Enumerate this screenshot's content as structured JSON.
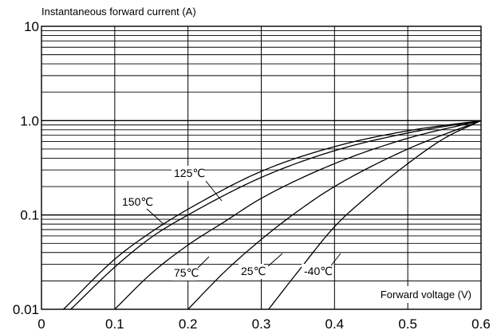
{
  "chart_data": {
    "type": "line",
    "title": "",
    "ylabel": "Instantaneous forward current (A)",
    "xlabel": "Forward voltage (V)",
    "x_scale": "linear",
    "y_scale": "log",
    "xlim": [
      0,
      0.6
    ],
    "ylim": [
      0.01,
      10
    ],
    "grid": true,
    "x_ticks": [
      "0",
      "0.1",
      "0.2",
      "0.3",
      "0.4",
      "0.5",
      "0.6"
    ],
    "y_ticks": [
      "0.01",
      "0.1",
      "1.0",
      "10"
    ],
    "series": [
      {
        "name": "150℃",
        "x": [
          0.03,
          0.1,
          0.15,
          0.2,
          0.3,
          0.4,
          0.5,
          0.6
        ],
        "y": [
          0.01,
          0.034,
          0.066,
          0.115,
          0.29,
          0.53,
          0.78,
          1.0
        ]
      },
      {
        "name": "125℃",
        "x": [
          0.04,
          0.1,
          0.15,
          0.2,
          0.3,
          0.4,
          0.5,
          0.6
        ],
        "y": [
          0.01,
          0.028,
          0.058,
          0.1,
          0.25,
          0.48,
          0.74,
          1.0
        ]
      },
      {
        "name": "75℃",
        "x": [
          0.1,
          0.15,
          0.2,
          0.25,
          0.3,
          0.4,
          0.5,
          0.6
        ],
        "y": [
          0.01,
          0.024,
          0.048,
          0.085,
          0.15,
          0.35,
          0.65,
          1.0
        ]
      },
      {
        "name": "25℃",
        "x": [
          0.2,
          0.25,
          0.3,
          0.35,
          0.4,
          0.5,
          0.6
        ],
        "y": [
          0.01,
          0.025,
          0.055,
          0.11,
          0.2,
          0.5,
          1.0
        ]
      },
      {
        "name": "-40℃",
        "x": [
          0.31,
          0.35,
          0.4,
          0.45,
          0.5,
          0.55,
          0.6
        ],
        "y": [
          0.01,
          0.025,
          0.075,
          0.17,
          0.35,
          0.65,
          1.0
        ]
      }
    ]
  }
}
